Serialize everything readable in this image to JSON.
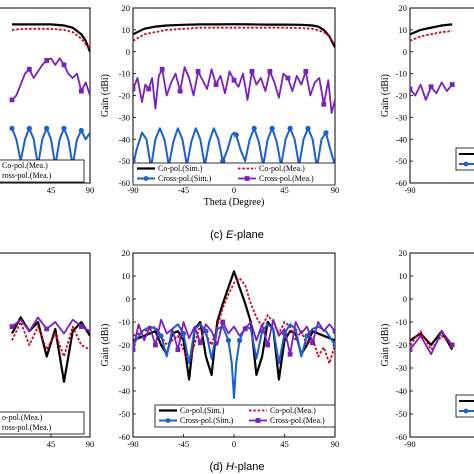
{
  "captions": {
    "c": {
      "prefix": "(c) ",
      "italic": "E",
      "suffix": "-plane"
    },
    "d": {
      "prefix": "(d) ",
      "italic": "H",
      "suffix": "-plane"
    }
  },
  "colors": {
    "co_sim": "#000000",
    "co_mea": "#d8001a",
    "cross_sim": "#1a5fd6",
    "cross_mea": "#7a1fc2"
  },
  "chart_data": [
    {
      "panel": "c-center",
      "type": "line",
      "title": "",
      "xlabel": "Theta (Degree)",
      "ylabel": "Gain (dBi)",
      "xlim": [
        -90,
        90
      ],
      "ylim": [
        -60,
        20
      ],
      "xticks": [
        "-90",
        "-45",
        "0",
        "45",
        "90"
      ],
      "yticks": [
        "20",
        "10",
        "0",
        "-10",
        "-20",
        "-30",
        "-40",
        "-50",
        "-60"
      ],
      "legend": {
        "placement": "bottom",
        "entries": [
          "Co-pol.(Sim.)",
          "Co-pol.(Mea.)",
          "Cross-pol.(Sim.)",
          "Cross-pol.(Mea.)"
        ]
      },
      "series": [
        {
          "name": "Co-pol.(Sim.)",
          "x": [
            -90,
            -80,
            -70,
            -60,
            -45,
            -30,
            -15,
            0,
            15,
            30,
            45,
            60,
            70,
            75,
            80,
            85,
            90
          ],
          "values": [
            8,
            10.5,
            11.5,
            12,
            12.3,
            12.5,
            12.5,
            12.6,
            12.5,
            12.4,
            12.4,
            12.3,
            12,
            11.5,
            10,
            7,
            2
          ]
        },
        {
          "name": "Co-pol.(Mea.)",
          "x": [
            -90,
            -80,
            -70,
            -60,
            -45,
            -30,
            -15,
            0,
            15,
            30,
            45,
            60,
            70,
            80,
            85,
            90
          ],
          "values": [
            5,
            8,
            9,
            10,
            10.5,
            11,
            11,
            11,
            11,
            11,
            11,
            10.8,
            10.5,
            9,
            7,
            3
          ]
        },
        {
          "name": "Cross-pol.(Sim.)",
          "x": [
            -90,
            -87,
            -82,
            -78,
            -74,
            -70,
            -66,
            -62,
            -58,
            -54,
            -50,
            -46,
            -42,
            -38,
            -34,
            -30,
            -26,
            -22,
            -18,
            -14,
            -10,
            -6,
            -2,
            0,
            2,
            6,
            10,
            14,
            18,
            22,
            26,
            30,
            34,
            38,
            42,
            46,
            50,
            54,
            58,
            62,
            66,
            70,
            74,
            78,
            82,
            86,
            90
          ],
          "values": [
            -52,
            -45,
            -37,
            -40,
            -53,
            -40,
            -35,
            -40,
            -52,
            -41,
            -35,
            -40,
            -52,
            -41,
            -35,
            -40,
            -52,
            -41,
            -35,
            -40,
            -50,
            -45,
            -38,
            -37,
            -38,
            -45,
            -50,
            -40,
            -35,
            -41,
            -52,
            -40,
            -35,
            -41,
            -52,
            -40,
            -35,
            -40,
            -52,
            -40,
            -35,
            -40,
            -53,
            -40,
            -37,
            -45,
            -52
          ]
        },
        {
          "name": "Cross-pol.(Mea.)",
          "x": [
            -90,
            -86,
            -82,
            -79,
            -76,
            -73,
            -70,
            -67,
            -64,
            -60,
            -56,
            -52,
            -48,
            -44,
            -40,
            -36,
            -32,
            -28,
            -24,
            -20,
            -16,
            -12,
            -8,
            -4,
            0,
            4,
            8,
            12,
            16,
            20,
            24,
            28,
            32,
            36,
            40,
            44,
            48,
            52,
            56,
            60,
            64,
            68,
            72,
            76,
            80,
            84,
            87,
            90
          ],
          "values": [
            -17,
            -12,
            -23,
            -15,
            -17,
            -12,
            -26,
            -11,
            -8,
            -20,
            -14,
            -10,
            -18,
            -7,
            -12,
            -20,
            -9,
            -13,
            -17,
            -8,
            -15,
            -11,
            -19,
            -9,
            -13,
            -16,
            -10,
            -22,
            -9,
            -15,
            -12,
            -18,
            -9,
            -14,
            -21,
            -10,
            -12,
            -18,
            -11,
            -15,
            -9,
            -20,
            -14,
            -12,
            -24,
            -13,
            -28,
            -22
          ]
        }
      ]
    },
    {
      "panel": "d-center",
      "type": "line",
      "title": "",
      "xlabel": "",
      "ylabel": "Gain (dBi)",
      "xlim": [
        -90,
        90
      ],
      "ylim": [
        -60,
        20
      ],
      "xticks": [
        "-90",
        "-45",
        "0",
        "45",
        "90"
      ],
      "yticks": [
        "20",
        "10",
        "0",
        "-10",
        "-20",
        "-30",
        "-40",
        "-50",
        "-60"
      ],
      "legend": {
        "placement": "bottom",
        "entries": [
          "Co-pol.(Sim.)",
          "Co-pol.(Mea.)",
          "Cross-pol.(Sim.)",
          "Cross-pol.(Mea.)"
        ]
      },
      "series": [
        {
          "name": "Co-pol.(Sim.)",
          "x": [
            -90,
            -80,
            -70,
            -65,
            -60,
            -55,
            -50,
            -45,
            -40,
            -35,
            -30,
            -25,
            -20,
            -15,
            -10,
            -5,
            0,
            5,
            10,
            15,
            20,
            25,
            30,
            35,
            40,
            45,
            50,
            55,
            60,
            65,
            70,
            80,
            90
          ],
          "values": [
            -18,
            -16,
            -14,
            -20,
            -24,
            -15,
            -14,
            -18,
            -35,
            -13,
            -10,
            -25,
            -33,
            -10,
            -2,
            5,
            12,
            5,
            -2,
            -10,
            -33,
            -25,
            -10,
            -13,
            -35,
            -18,
            -14,
            -15,
            -24,
            -20,
            -14,
            -16,
            -18
          ]
        },
        {
          "name": "Co-pol.(Mea.)",
          "x": [
            -90,
            -80,
            -70,
            -60,
            -50,
            -40,
            -30,
            -20,
            -10,
            -5,
            0,
            5,
            10,
            15,
            20,
            25,
            30,
            35,
            40,
            45,
            50,
            55,
            60,
            65,
            70,
            75,
            80,
            85,
            90
          ],
          "values": [
            -16,
            -14,
            -12,
            -20,
            -16,
            -28,
            -11,
            -20,
            -4,
            2,
            7,
            9,
            6,
            -2,
            -8,
            -12,
            -7,
            -10,
            -15,
            -10,
            -12,
            -18,
            -14,
            -20,
            -17,
            -25,
            -21,
            -28,
            -20
          ]
        },
        {
          "name": "Cross-pol.(Sim.)",
          "x": [
            -90,
            -82,
            -75,
            -70,
            -65,
            -60,
            -55,
            -50,
            -45,
            -40,
            -35,
            -30,
            -25,
            -20,
            -15,
            -10,
            -5,
            -2,
            0,
            2,
            5,
            10,
            15,
            20,
            25,
            30,
            35,
            40,
            45,
            50,
            55,
            60,
            65,
            70,
            75,
            82,
            90
          ],
          "values": [
            -20,
            -14,
            -12,
            -13,
            -16,
            -25,
            -13,
            -11,
            -15,
            -28,
            -13,
            -11,
            -14,
            -26,
            -13,
            -12,
            -18,
            -28,
            -43,
            -28,
            -18,
            -12,
            -13,
            -26,
            -14,
            -11,
            -13,
            -28,
            -15,
            -11,
            -13,
            -25,
            -16,
            -13,
            -12,
            -14,
            -20
          ]
        },
        {
          "name": "Cross-pol.(Mea.)",
          "x": [
            -90,
            -85,
            -80,
            -75,
            -70,
            -65,
            -60,
            -55,
            -50,
            -45,
            -40,
            -35,
            -30,
            -25,
            -20,
            -15,
            -10,
            -5,
            0,
            5,
            10,
            15,
            20,
            25,
            30,
            35,
            40,
            45,
            50,
            55,
            60,
            65,
            70,
            75,
            80,
            85,
            90
          ],
          "values": [
            -22,
            -11,
            -18,
            -12,
            -20,
            -9,
            -15,
            -13,
            -22,
            -10,
            -17,
            -12,
            -19,
            -11,
            -14,
            -20,
            -10,
            -15,
            -12,
            -16,
            -13,
            -10,
            -18,
            -11,
            -20,
            -9,
            -16,
            -13,
            -24,
            -10,
            -15,
            -12,
            -19,
            -10,
            -14,
            -11,
            -14
          ]
        }
      ]
    },
    {
      "panel": "c-left-partial",
      "type": "line",
      "xticks": [
        "45",
        "90"
      ],
      "legend_entries": [
        "Co-pol.(Mea.)",
        "ross-pol.(Mea.)"
      ],
      "series": [
        {
          "name": "Co-pol.(Sim.)",
          "x": [
            0,
            15,
            30,
            45,
            60,
            70,
            80,
            85,
            90
          ],
          "values": [
            12.5,
            12.5,
            12.5,
            12.5,
            12,
            11,
            8,
            5,
            0
          ]
        },
        {
          "name": "Co-pol.(Mea.)",
          "x": [
            0,
            15,
            30,
            45,
            60,
            70,
            80,
            90
          ],
          "values": [
            10,
            10.5,
            10.5,
            10.5,
            10,
            9,
            6,
            1
          ]
        },
        {
          "name": "Cross-pol.(Sim.)",
          "x": [
            0,
            5,
            10,
            15,
            20,
            25,
            30,
            35,
            40,
            45,
            50,
            55,
            60,
            65,
            70,
            75,
            80,
            85,
            90
          ],
          "values": [
            -35,
            -40,
            -50,
            -40,
            -35,
            -40,
            -52,
            -40,
            -35,
            -40,
            -52,
            -40,
            -35,
            -40,
            -52,
            -40,
            -36,
            -40,
            -37
          ]
        },
        {
          "name": "Cross-pol.(Mea.)",
          "x": [
            0,
            5,
            10,
            15,
            20,
            25,
            30,
            35,
            40,
            45,
            50,
            55,
            60,
            65,
            70,
            75,
            80,
            85,
            90
          ],
          "values": [
            -22,
            -20,
            -15,
            -10,
            -8,
            -12,
            -9,
            -6,
            -4,
            -3,
            -6,
            -3,
            -6,
            -10,
            -12,
            -10,
            -18,
            -14,
            -20
          ]
        }
      ]
    },
    {
      "panel": "c-right-partial",
      "type": "line",
      "ylabel": "Gain (dBi)",
      "yticks": [
        "20",
        "10",
        "0",
        "-10",
        "-20",
        "-30",
        "-40",
        "-50",
        "-60"
      ],
      "xticks": [
        "-90"
      ],
      "series": [
        {
          "name": "Co-pol.(Sim.)",
          "x": [
            -90,
            -80,
            -70,
            -60,
            -50
          ],
          "values": [
            8,
            10,
            11,
            12,
            12.5
          ]
        },
        {
          "name": "Co-pol.(Mea.)",
          "x": [
            -90,
            -80,
            -70,
            -60,
            -50
          ],
          "values": [
            5,
            7,
            8,
            9,
            9.5
          ]
        },
        {
          "name": "Cross-pol.(Mea.)",
          "x": [
            -90,
            -85,
            -80,
            -75,
            -70,
            -65,
            -60,
            -55,
            -50
          ],
          "values": [
            -17,
            -20,
            -15,
            -22,
            -16,
            -19,
            -14,
            -18,
            -15
          ]
        }
      ]
    },
    {
      "panel": "d-left-partial",
      "type": "line",
      "xticks": [
        "45",
        "90"
      ],
      "legend_entries": [
        "o-pol.(Mea.)",
        "ross-pol.(Mea.)"
      ],
      "series": [
        {
          "name": "Co-pol.(Sim.)",
          "x": [
            0,
            10,
            20,
            30,
            40,
            50,
            60,
            70,
            80,
            90
          ],
          "values": [
            -15,
            -8,
            -14,
            -10,
            -25,
            -13,
            -36,
            -14,
            -10,
            -16
          ]
        },
        {
          "name": "Co-pol.(Mea.)",
          "x": [
            0,
            10,
            20,
            30,
            40,
            50,
            60,
            70,
            80,
            90
          ],
          "values": [
            -18,
            -10,
            -20,
            -12,
            -22,
            -15,
            -25,
            -12,
            -20,
            -22
          ]
        },
        {
          "name": "Cross-pol.(Mea.)",
          "x": [
            0,
            10,
            20,
            30,
            40,
            50,
            60,
            70,
            80,
            90
          ],
          "values": [
            -12,
            -9,
            -14,
            -8,
            -13,
            -10,
            -15,
            -9,
            -12,
            -14
          ]
        }
      ]
    },
    {
      "panel": "d-right-partial",
      "type": "line",
      "ylabel": "Gain (dBi)",
      "yticks": [
        "20",
        "10",
        "0",
        "-10",
        "-20",
        "-30",
        "-40",
        "-50",
        "-60"
      ],
      "xticks": [
        "-90"
      ],
      "series": [
        {
          "name": "Co-pol.(Sim.)",
          "x": [
            -90,
            -80,
            -70,
            -60,
            -50
          ],
          "values": [
            -18,
            -15,
            -20,
            -14,
            -22
          ]
        },
        {
          "name": "Co-pol.(Mea.)",
          "x": [
            -90,
            -80,
            -70,
            -60,
            -50
          ],
          "values": [
            -20,
            -14,
            -22,
            -16,
            -20
          ]
        },
        {
          "name": "Cross-pol.(Mea.)",
          "x": [
            -90,
            -80,
            -70,
            -60,
            -50
          ],
          "values": [
            -22,
            -16,
            -24,
            -14,
            -20
          ]
        }
      ]
    }
  ]
}
